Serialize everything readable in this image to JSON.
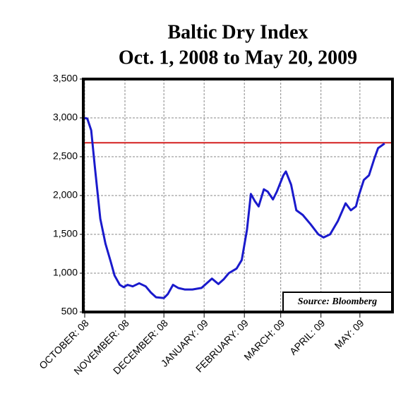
{
  "chart_data": {
    "type": "line",
    "title": "Baltic Dry Index",
    "subtitle": "Oct. 1, 2008 to May 20, 2009",
    "annotation": "Source: Bloomberg",
    "x": [
      "2008-10-01",
      "2008-10-03",
      "2008-10-06",
      "2008-10-09",
      "2008-10-13",
      "2008-10-17",
      "2008-10-21",
      "2008-10-24",
      "2008-10-28",
      "2008-10-31",
      "2008-11-03",
      "2008-11-07",
      "2008-11-12",
      "2008-11-17",
      "2008-11-21",
      "2008-11-25",
      "2008-12-01",
      "2008-12-04",
      "2008-12-08",
      "2008-12-12",
      "2008-12-17",
      "2008-12-23",
      "2008-12-30",
      "2009-01-07",
      "2009-01-12",
      "2009-01-16",
      "2009-01-20",
      "2009-01-26",
      "2009-01-30",
      "2009-02-03",
      "2009-02-06",
      "2009-02-09",
      "2009-02-12",
      "2009-02-16",
      "2009-02-19",
      "2009-02-23",
      "2009-02-26",
      "2009-03-03",
      "2009-03-05",
      "2009-03-09",
      "2009-03-13",
      "2009-03-18",
      "2009-03-24",
      "2009-03-30",
      "2009-04-03",
      "2009-04-08",
      "2009-04-14",
      "2009-04-20",
      "2009-04-24",
      "2009-04-28",
      "2009-04-30",
      "2009-05-04",
      "2009-05-08",
      "2009-05-12",
      "2009-05-15",
      "2009-05-20"
    ],
    "series": [
      {
        "name": "Baltic Dry Index",
        "color": "#1a1acc",
        "values": [
          3000,
          2990,
          2840,
          2340,
          1700,
          1380,
          1150,
          970,
          850,
          820,
          850,
          830,
          870,
          830,
          750,
          690,
          680,
          730,
          850,
          810,
          790,
          790,
          810,
          930,
          860,
          920,
          1000,
          1060,
          1170,
          1560,
          2020,
          1930,
          1860,
          2080,
          2050,
          1950,
          2050,
          2260,
          2310,
          2140,
          1810,
          1750,
          1630,
          1500,
          1460,
          1500,
          1670,
          1900,
          1810,
          1860,
          1990,
          2200,
          2260,
          2470,
          2610,
          2670
        ]
      }
    ],
    "reference_line": {
      "value": 2680,
      "color": "#d42020"
    },
    "xlim": [
      "2008-10-01",
      "2009-05-25"
    ],
    "xticks": [
      {
        "value": "2008-10-01",
        "label": "OCTOBER: 08"
      },
      {
        "value": "2008-11-01",
        "label": "NOVEMBER: 08"
      },
      {
        "value": "2008-12-01",
        "label": "DECEMBER: 08"
      },
      {
        "value": "2009-01-01",
        "label": "JANUARY: 09"
      },
      {
        "value": "2009-02-01",
        "label": "FEBRUARY: 09"
      },
      {
        "value": "2009-03-01",
        "label": "MARCH: 09"
      },
      {
        "value": "2009-04-01",
        "label": "APRIL: 09"
      },
      {
        "value": "2009-05-01",
        "label": "MAY: 09"
      }
    ],
    "ylim": [
      500,
      3500
    ],
    "yticks": [
      {
        "value": 500,
        "label": "500"
      },
      {
        "value": 1000,
        "label": "1,000"
      },
      {
        "value": 1500,
        "label": "1,500"
      },
      {
        "value": 2000,
        "label": "2,000"
      },
      {
        "value": 2500,
        "label": "2,500"
      },
      {
        "value": 3000,
        "label": "3,000"
      },
      {
        "value": 3500,
        "label": "3,500"
      }
    ],
    "grid": true
  }
}
